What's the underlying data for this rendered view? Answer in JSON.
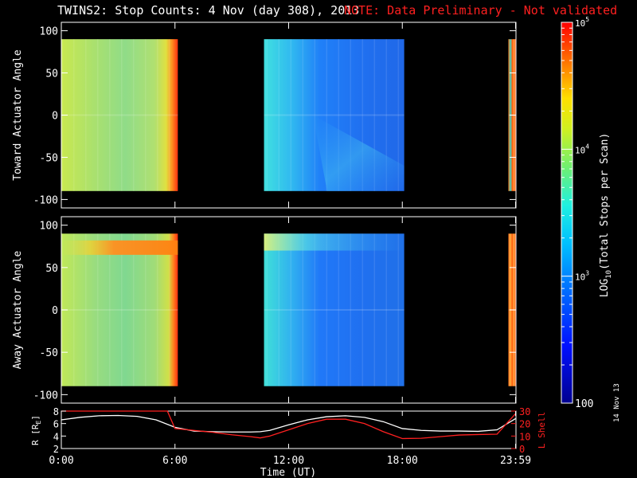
{
  "title": {
    "main": "TWINS2: Stop Counts:  4 Nov (day 308), 2013",
    "note": "NOTE: Data Preliminary - Not validated"
  },
  "date_stamp": "14 Nov 13",
  "colors": {
    "note": "#ff2020",
    "lshell": "#ff2020",
    "radius": "#ffffff",
    "background": "#000000"
  },
  "chart_data": [
    {
      "type": "heatmap",
      "ylabel": "Toward Actuator Angle",
      "yticks": [
        100,
        50,
        0,
        -50,
        -100
      ],
      "ylim": [
        -110,
        110
      ],
      "data_yrange": [
        -90,
        90
      ],
      "xlim": [
        0,
        24
      ],
      "colorbar_ref": "stop_counts",
      "segments": [
        {
          "start_h": 0.0,
          "end_h": 6.15,
          "profile": "green_yellow_ramp_to_red"
        },
        {
          "start_h": 10.7,
          "end_h": 18.1,
          "profile": "cyan_to_blue_with_diagonal_band"
        },
        {
          "start_h": 23.6,
          "end_h": 24.0,
          "profile": "orange_red_mixed"
        }
      ]
    },
    {
      "type": "heatmap",
      "ylabel": "Away Actuator Angle",
      "yticks": [
        100,
        50,
        0,
        -50,
        -100
      ],
      "ylim": [
        -110,
        110
      ],
      "data_yrange": [
        -90,
        90
      ],
      "xlim": [
        0,
        24
      ],
      "colorbar_ref": "stop_counts",
      "segments": [
        {
          "start_h": 0.0,
          "end_h": 6.15,
          "profile": "green_yellow_with_orange_band_near_75"
        },
        {
          "start_h": 10.7,
          "end_h": 18.1,
          "profile": "cyan_to_blue_with_light_band_near_80"
        },
        {
          "start_h": 23.6,
          "end_h": 24.0,
          "profile": "orange_red_mixed"
        }
      ]
    },
    {
      "type": "line",
      "xlabel": "Time (UT)",
      "xticks": [
        "0:00",
        "6:00",
        "12:00",
        "18:00",
        "23:59"
      ],
      "xtick_hours": [
        0,
        6,
        12,
        18,
        23.98
      ],
      "ylabel": "R [R",
      "ylabel_sub": "E",
      "ylabel_close": "]",
      "yticks": [
        2,
        4,
        6,
        8
      ],
      "ylim": [
        2,
        8
      ],
      "y2label": "L Shell",
      "y2ticks": [
        0,
        10,
        20,
        30
      ],
      "y2lim": [
        0,
        30
      ],
      "series": [
        {
          "name": "R",
          "axis": "left",
          "x": [
            0,
            1,
            2,
            3,
            4,
            5,
            6,
            7,
            8,
            9,
            10,
            10.5,
            11,
            12,
            13,
            14,
            15,
            16,
            17,
            18,
            19,
            20,
            21,
            22,
            23,
            23.98
          ],
          "y": [
            6.6,
            7.0,
            7.25,
            7.3,
            7.15,
            6.6,
            5.4,
            4.8,
            4.7,
            4.65,
            4.65,
            4.7,
            4.9,
            5.8,
            6.6,
            7.1,
            7.25,
            7.0,
            6.3,
            5.2,
            4.9,
            4.8,
            4.8,
            4.75,
            5.0,
            6.8
          ]
        },
        {
          "name": "L Shell",
          "axis": "right",
          "x": [
            0,
            0.3,
            1,
            2,
            3,
            4,
            5,
            5.6,
            6,
            7,
            8,
            9,
            10,
            10.5,
            11,
            12,
            13,
            14,
            15,
            16,
            17,
            18,
            19,
            20,
            21,
            22,
            23,
            23.98
          ],
          "y": [
            30,
            30,
            30,
            30,
            30,
            30,
            30,
            30,
            16,
            14.5,
            13,
            11,
            9.5,
            8.5,
            10,
            15,
            20,
            23.5,
            23.5,
            20,
            13.5,
            8,
            8.2,
            9.5,
            10.8,
            11.2,
            11.5,
            28
          ]
        }
      ]
    }
  ],
  "colorbar": {
    "label_prefix": "LOG",
    "label_sub": "10",
    "label_rest": "(Total Stops per Scan)",
    "ticks": [
      {
        "base": "10",
        "exp": "5"
      },
      {
        "base": "10",
        "exp": "4"
      },
      {
        "base": "10",
        "exp": "3"
      },
      {
        "base": "100",
        "exp": ""
      }
    ],
    "log_min": 2,
    "log_max": 5
  }
}
